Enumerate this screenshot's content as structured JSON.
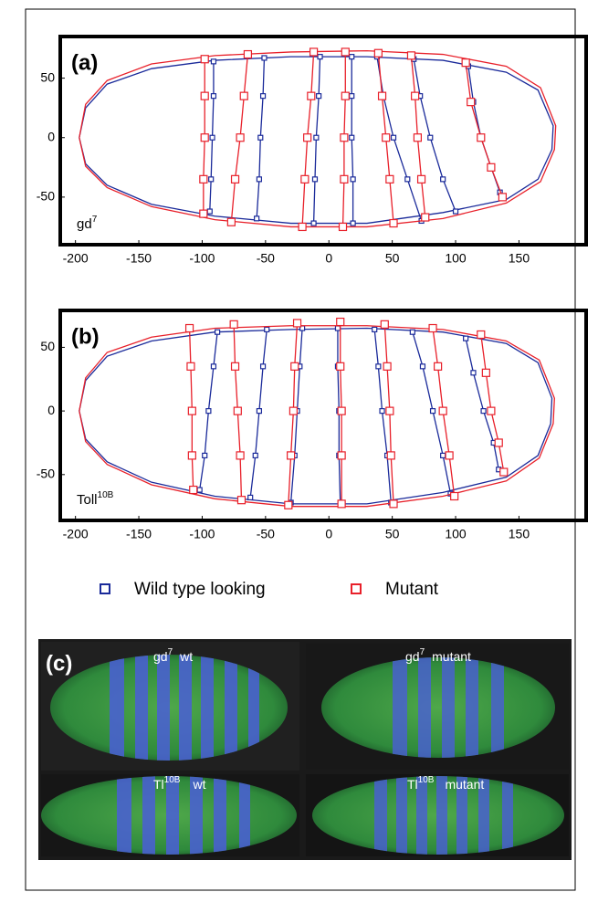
{
  "chart_data": [
    {
      "type": "line",
      "label": "(a)",
      "annotation": {
        "text": "gd",
        "sup": "7"
      },
      "xlim": [
        -212,
        203
      ],
      "ylim": [
        -90,
        85
      ],
      "xticks": [
        -200,
        -150,
        -100,
        -50,
        0,
        50,
        100,
        150
      ],
      "yticks": [
        50,
        0,
        -50
      ],
      "series": [
        {
          "color": "#1a2a9a",
          "outline": {
            "x": [
              -197,
              -192,
              -175,
              -140,
              -90,
              -30,
              30,
              90,
              140,
              165,
              177,
              176,
              165,
              140,
              90,
              30,
              -30,
              -90,
              -140,
              -175,
              -192,
              -197
            ],
            "y": [
              0,
              25,
              45,
              58,
              65,
              68,
              68,
              65,
              55,
              40,
              10,
              -10,
              -35,
              -52,
              -63,
              -72,
              -72,
              -66,
              -56,
              -40,
              -22,
              0
            ]
          },
          "stripes": [
            {
              "x": [
                -91,
                -91,
                -92,
                -93,
                -94
              ],
              "y": [
                64,
                35,
                0,
                -35,
                -62
              ]
            },
            {
              "x": [
                -51,
                -52,
                -54,
                -55,
                -57
              ],
              "y": [
                67,
                35,
                0,
                -35,
                -68
              ]
            },
            {
              "x": [
                -7,
                -8,
                -10,
                -11,
                -12
              ],
              "y": [
                68,
                35,
                0,
                -35,
                -72
              ]
            },
            {
              "x": [
                18,
                18,
                18,
                19,
                19
              ],
              "y": [
                68,
                35,
                0,
                -35,
                -72
              ]
            },
            {
              "x": [
                38,
                43,
                51,
                62,
                73
              ],
              "y": [
                68,
                35,
                0,
                -35,
                -70
              ]
            },
            {
              "x": [
                67,
                72,
                80,
                90,
                100
              ],
              "y": [
                66,
                35,
                0,
                -35,
                -62
              ]
            },
            {
              "x": [
                110,
                114,
                120,
                128,
                135
              ],
              "y": [
                60,
                30,
                0,
                -25,
                -46
              ]
            }
          ]
        },
        {
          "color": "#e8202a",
          "outline": {
            "x": [
              -197,
              -192,
              -175,
              -140,
              -90,
              -30,
              30,
              90,
              140,
              167,
              179,
              178,
              167,
              140,
              90,
              30,
              -30,
              -90,
              -140,
              -175,
              -192,
              -197
            ],
            "y": [
              0,
              28,
              48,
              62,
              69,
              72,
              73,
              70,
              60,
              42,
              10,
              -10,
              -37,
              -55,
              -68,
              -75,
              -75,
              -69,
              -58,
              -42,
              -24,
              0
            ]
          },
          "stripes": [
            {
              "x": [
                -98,
                -98,
                -98,
                -99,
                -99
              ],
              "y": [
                66,
                35,
                0,
                -35,
                -64
              ]
            },
            {
              "x": [
                -64,
                -67,
                -70,
                -74,
                -77
              ],
              "y": [
                70,
                35,
                0,
                -35,
                -71
              ]
            },
            {
              "x": [
                -12,
                -14,
                -17,
                -19,
                -21
              ],
              "y": [
                72,
                35,
                0,
                -35,
                -75
              ]
            },
            {
              "x": [
                13,
                13,
                12,
                12,
                11
              ],
              "y": [
                72,
                35,
                0,
                -35,
                -75
              ]
            },
            {
              "x": [
                39,
                42,
                45,
                48,
                51
              ],
              "y": [
                71,
                35,
                0,
                -35,
                -72
              ]
            },
            {
              "x": [
                65,
                68,
                70,
                73,
                76
              ],
              "y": [
                69,
                35,
                0,
                -35,
                -67
              ]
            },
            {
              "x": [
                108,
                112,
                120,
                128,
                137
              ],
              "y": [
                63,
                30,
                0,
                -25,
                -50
              ]
            }
          ]
        }
      ]
    },
    {
      "type": "line",
      "label": "(b)",
      "annotation": {
        "text": "Toll",
        "sup": "10B"
      },
      "xlim": [
        -212,
        203
      ],
      "ylim": [
        -86,
        79
      ],
      "xticks": [
        -200,
        -150,
        -100,
        -50,
        0,
        50,
        100,
        150
      ],
      "yticks": [
        50,
        0,
        -50
      ],
      "series": [
        {
          "name": "Wild type looking",
          "color": "#1a2a9a",
          "outline": {
            "x": [
              -197,
              -192,
              -175,
              -140,
              -90,
              -30,
              30,
              90,
              140,
              165,
              176,
              175,
              165,
              140,
              90,
              30,
              -30,
              -90,
              -140,
              -175,
              -192,
              -197
            ],
            "y": [
              0,
              24,
              43,
              55,
              62,
              64,
              65,
              62,
              53,
              38,
              10,
              -10,
              -35,
              -52,
              -64,
              -73,
              -73,
              -67,
              -56,
              -40,
              -22,
              0
            ]
          },
          "stripes": [
            {
              "x": [
                -88,
                -91,
                -95,
                -98,
                -102
              ],
              "y": [
                62,
                35,
                0,
                -35,
                -62
              ]
            },
            {
              "x": [
                -49,
                -52,
                -55,
                -58,
                -62
              ],
              "y": [
                64,
                35,
                0,
                -35,
                -68
              ]
            },
            {
              "x": [
                -21,
                -23,
                -25,
                -27,
                -30
              ],
              "y": [
                65,
                35,
                0,
                -35,
                -72
              ]
            },
            {
              "x": [
                7,
                7,
                8,
                8,
                9
              ],
              "y": [
                65,
                35,
                0,
                -35,
                -73
              ]
            },
            {
              "x": [
                36,
                39,
                42,
                46,
                49
              ],
              "y": [
                64,
                35,
                0,
                -35,
                -72
              ]
            },
            {
              "x": [
                66,
                74,
                82,
                90,
                96
              ],
              "y": [
                62,
                35,
                0,
                -35,
                -65
              ]
            },
            {
              "x": [
                108,
                114,
                122,
                130,
                134
              ],
              "y": [
                57,
                30,
                0,
                -25,
                -46
              ]
            }
          ]
        },
        {
          "name": "Mutant",
          "color": "#e8202a",
          "outline": {
            "x": [
              -197,
              -192,
              -175,
              -140,
              -90,
              -30,
              30,
              90,
              140,
              166,
              178,
              177,
              166,
              140,
              90,
              30,
              -30,
              -90,
              -140,
              -175,
              -192,
              -197
            ],
            "y": [
              0,
              26,
              46,
              58,
              65,
              67,
              67,
              64,
              55,
              40,
              10,
              -10,
              -37,
              -55,
              -67,
              -75,
              -75,
              -69,
              -58,
              -42,
              -24,
              0
            ]
          },
          "stripes": [
            {
              "x": [
                -110,
                -109,
                -108,
                -108,
                -107
              ],
              "y": [
                65,
                35,
                0,
                -35,
                -62
              ]
            },
            {
              "x": [
                -75,
                -74,
                -72,
                -70,
                -69
              ],
              "y": [
                68,
                35,
                0,
                -35,
                -70
              ]
            },
            {
              "x": [
                -25,
                -27,
                -28,
                -30,
                -32
              ],
              "y": [
                69,
                35,
                0,
                -35,
                -74
              ]
            },
            {
              "x": [
                9,
                9,
                10,
                10,
                10
              ],
              "y": [
                70,
                35,
                0,
                -35,
                -73
              ]
            },
            {
              "x": [
                44,
                46,
                48,
                49,
                51
              ],
              "y": [
                68,
                35,
                0,
                -35,
                -73
              ]
            },
            {
              "x": [
                82,
                86,
                90,
                95,
                99
              ],
              "y": [
                65,
                35,
                0,
                -35,
                -67
              ]
            },
            {
              "x": [
                120,
                124,
                128,
                134,
                138
              ],
              "y": [
                60,
                30,
                0,
                -25,
                -48
              ]
            }
          ]
        }
      ]
    }
  ],
  "panel_c": {
    "label": "(c)",
    "images": [
      {
        "title": "gd",
        "sup": "7",
        "caption": "wt"
      },
      {
        "title": "gd",
        "sup": "7",
        "caption": "mutant"
      },
      {
        "title": "Tl",
        "sup": "10B",
        "caption": "wt"
      },
      {
        "title": "Tl",
        "sup": "10B",
        "caption": "mutant"
      }
    ]
  }
}
